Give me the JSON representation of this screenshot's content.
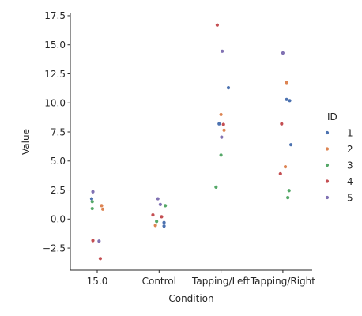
{
  "chart_data": {
    "type": "scatter",
    "title": "",
    "xlabel": "Condition",
    "ylabel": "Value",
    "categories": [
      "15.0",
      "Control",
      "Tapping/Left",
      "Tapping/Right"
    ],
    "ylim": [
      -4.4,
      17.7
    ],
    "yticks": [
      -2.5,
      0.0,
      2.5,
      5.0,
      7.5,
      10.0,
      12.5,
      15.0,
      17.5
    ],
    "ytick_labels": [
      "−2.5",
      "0.0",
      "2.5",
      "5.0",
      "7.5",
      "10.0",
      "12.5",
      "15.0",
      "17.5"
    ],
    "grid": false,
    "legend": {
      "title": "ID",
      "placement": "right"
    },
    "series": [
      {
        "name": "1",
        "color": "#4c72b0",
        "points": [
          {
            "category": "15.0",
            "jitter": -0.09,
            "value": 1.75
          },
          {
            "category": "Control",
            "jitter": 0.08,
            "value": -0.3
          },
          {
            "category": "Control",
            "jitter": 0.08,
            "value": -0.6
          },
          {
            "category": "Tapping/Left",
            "jitter": -0.03,
            "value": 8.2
          },
          {
            "category": "Tapping/Left",
            "jitter": 0.12,
            "value": 11.3
          },
          {
            "category": "Tapping/Right",
            "jitter": 0.06,
            "value": 10.3
          },
          {
            "category": "Tapping/Right",
            "jitter": 0.13,
            "value": 6.4
          },
          {
            "category": "Tapping/Right",
            "jitter": 0.11,
            "value": 10.2
          }
        ]
      },
      {
        "name": "2",
        "color": "#dd8452",
        "points": [
          {
            "category": "15.0",
            "jitter": 0.07,
            "value": 1.15
          },
          {
            "category": "15.0",
            "jitter": 0.09,
            "value": 0.85
          },
          {
            "category": "Control",
            "jitter": -0.06,
            "value": -0.55
          },
          {
            "category": "Tapping/Left",
            "jitter": 0.0,
            "value": 9.0
          },
          {
            "category": "Tapping/Left",
            "jitter": 0.05,
            "value": 7.65
          },
          {
            "category": "Tapping/Right",
            "jitter": 0.06,
            "value": 11.75
          },
          {
            "category": "Tapping/Right",
            "jitter": 0.04,
            "value": 4.5
          }
        ]
      },
      {
        "name": "3",
        "color": "#55a868",
        "points": [
          {
            "category": "15.0",
            "jitter": -0.08,
            "value": 1.5
          },
          {
            "category": "15.0",
            "jitter": -0.08,
            "value": 0.9
          },
          {
            "category": "Control",
            "jitter": -0.04,
            "value": -0.2
          },
          {
            "category": "Control",
            "jitter": 0.1,
            "value": 1.15
          },
          {
            "category": "Tapping/Left",
            "jitter": 0.0,
            "value": 5.5
          },
          {
            "category": "Tapping/Left",
            "jitter": -0.08,
            "value": 2.75
          },
          {
            "category": "Tapping/Right",
            "jitter": 0.1,
            "value": 2.45
          },
          {
            "category": "Tapping/Right",
            "jitter": 0.08,
            "value": 1.85
          }
        ]
      },
      {
        "name": "4",
        "color": "#c44e52",
        "points": [
          {
            "category": "15.0",
            "jitter": -0.07,
            "value": -1.85
          },
          {
            "category": "15.0",
            "jitter": 0.05,
            "value": -3.4
          },
          {
            "category": "Control",
            "jitter": -0.1,
            "value": 0.35
          },
          {
            "category": "Control",
            "jitter": 0.04,
            "value": 0.2
          },
          {
            "category": "Tapping/Left",
            "jitter": -0.06,
            "value": 16.7
          },
          {
            "category": "Tapping/Left",
            "jitter": 0.04,
            "value": 8.15
          },
          {
            "category": "Tapping/Right",
            "jitter": -0.02,
            "value": 8.2
          },
          {
            "category": "Tapping/Right",
            "jitter": -0.04,
            "value": 3.9
          }
        ]
      },
      {
        "name": "5",
        "color": "#8172b3",
        "points": [
          {
            "category": "15.0",
            "jitter": -0.07,
            "value": 2.35
          },
          {
            "category": "15.0",
            "jitter": 0.03,
            "value": -1.9
          },
          {
            "category": "Control",
            "jitter": -0.02,
            "value": 1.75
          },
          {
            "category": "Control",
            "jitter": 0.02,
            "value": 1.25
          },
          {
            "category": "Tapping/Left",
            "jitter": 0.02,
            "value": 14.45
          },
          {
            "category": "Tapping/Left",
            "jitter": 0.01,
            "value": 7.05
          },
          {
            "category": "Tapping/Right",
            "jitter": 0.0,
            "value": 14.3
          }
        ]
      }
    ]
  }
}
